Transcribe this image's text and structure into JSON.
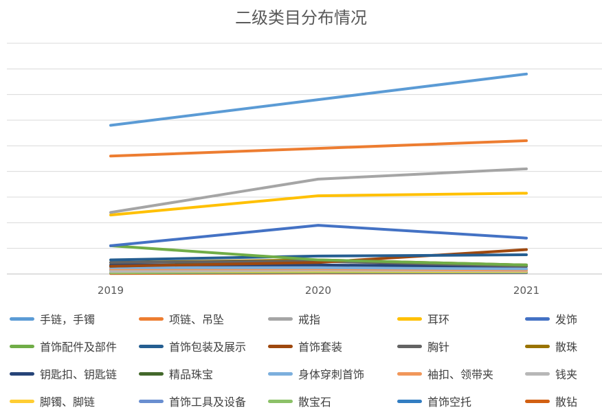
{
  "chart_data": {
    "type": "line",
    "title": "二级类目分布情况",
    "categories": [
      "2019",
      "2020",
      "2021"
    ],
    "ylim": [
      0,
      9
    ],
    "grid": true,
    "legend_position": "bottom",
    "series": [
      {
        "name": "手链，手镯",
        "color": "#5B9BD5",
        "values": [
          5.8,
          6.8,
          7.8
        ]
      },
      {
        "name": "项链、吊坠",
        "color": "#ED7D31",
        "values": [
          4.6,
          4.9,
          5.2
        ]
      },
      {
        "name": "戒指",
        "color": "#A5A5A5",
        "values": [
          2.4,
          3.7,
          4.1
        ]
      },
      {
        "name": "耳环",
        "color": "#FFC000",
        "values": [
          2.3,
          3.05,
          3.15
        ]
      },
      {
        "name": "发饰",
        "color": "#4472C4",
        "values": [
          1.1,
          1.9,
          1.4
        ]
      },
      {
        "name": "首饰配件及部件",
        "color": "#70AD47",
        "values": [
          1.1,
          0.55,
          0.35
        ]
      },
      {
        "name": "首饰包装及展示",
        "color": "#255E91",
        "values": [
          0.55,
          0.7,
          0.75
        ]
      },
      {
        "name": "首饰套装",
        "color": "#9E480E",
        "values": [
          0.3,
          0.45,
          0.95
        ]
      },
      {
        "name": "胸针",
        "color": "#636363",
        "values": [
          0.45,
          0.5,
          0.3
        ]
      },
      {
        "name": "散珠",
        "color": "#997300",
        "values": [
          0.45,
          0.55,
          0.35
        ]
      },
      {
        "name": "钥匙扣、钥匙链",
        "color": "#264478",
        "values": [
          0.35,
          0.35,
          0.3
        ]
      },
      {
        "name": "精品珠宝",
        "color": "#43682B",
        "values": [
          0.3,
          0.5,
          0.35
        ]
      },
      {
        "name": "身体穿刺首饰",
        "color": "#7CAFDD",
        "values": [
          0.25,
          0.25,
          0.2
        ]
      },
      {
        "name": "袖扣、领带夹",
        "color": "#F1975A",
        "values": [
          0.2,
          0.2,
          0.15
        ]
      },
      {
        "name": "钱夹",
        "color": "#B7B7B7",
        "values": [
          0.1,
          0.15,
          0.12
        ]
      },
      {
        "name": "脚镯、脚链",
        "color": "#FFCD33",
        "values": [
          0.1,
          0.12,
          0.1
        ]
      },
      {
        "name": "首饰工具及设备",
        "color": "#698ED0",
        "values": [
          0.15,
          0.15,
          0.12
        ]
      },
      {
        "name": "散宝石",
        "color": "#8CC168",
        "values": [
          0.05,
          0.08,
          0.08
        ]
      },
      {
        "name": "首饰空托",
        "color": "#327DC2",
        "values": [
          0.05,
          0.07,
          0.06
        ]
      },
      {
        "name": "散钻",
        "color": "#D26012",
        "values": [
          0.02,
          0.04,
          0.05
        ]
      }
    ]
  }
}
